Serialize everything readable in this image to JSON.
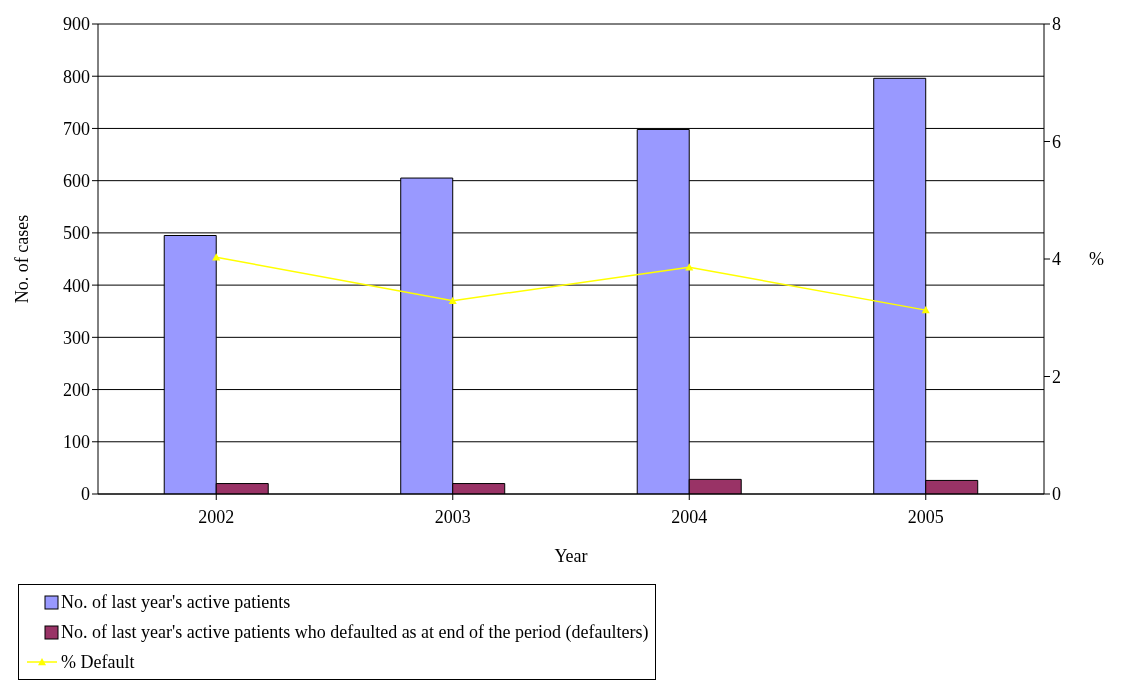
{
  "chart_data": {
    "type": "bar",
    "xlabel": "Year",
    "ylabel": "No. of cases",
    "y2label": "%",
    "categories": [
      "2002",
      "2003",
      "2004",
      "2005"
    ],
    "series": [
      {
        "name": "No. of last year's active patients",
        "color": "#9999ff",
        "values": [
          495,
          605,
          698,
          796
        ]
      },
      {
        "name": "No. of last year's active patients who defaulted as at end of the period (defaulters)",
        "color": "#993366",
        "values": [
          20,
          20,
          28,
          26
        ]
      },
      {
        "name": "% Default",
        "type": "line",
        "axis": "y2",
        "color": "#ffff00",
        "marker": "triangle",
        "values": [
          4.03,
          3.29,
          3.86,
          3.13
        ]
      }
    ],
    "ylim": [
      0,
      900
    ],
    "yticks": [
      0,
      100,
      200,
      300,
      400,
      500,
      600,
      700,
      800,
      900
    ],
    "y2lim": [
      0,
      8
    ],
    "y2ticks": [
      0,
      2,
      4,
      6,
      8
    ],
    "grid": "y",
    "legend": "bottom"
  }
}
